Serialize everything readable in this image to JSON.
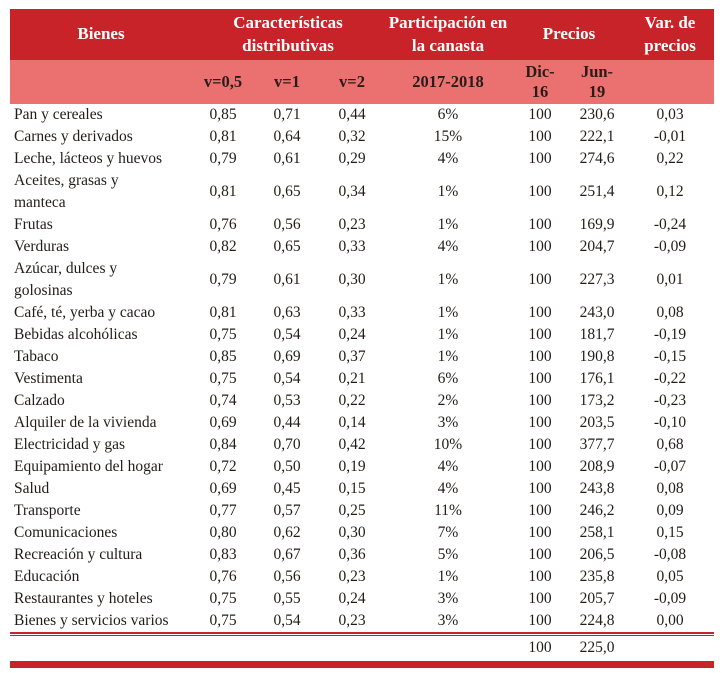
{
  "colors": {
    "header_bg": "#c9232a",
    "subheader_bg": "#ea716f",
    "rule_red": "#c9232a",
    "header_text": "#ffffff",
    "body_text": "#221c19"
  },
  "table": {
    "header": {
      "bienes": "Bienes",
      "caracteristicas": "Características distributivas",
      "participacion": "Participación en la canasta",
      "precios": "Precios",
      "var_precios": "Var. de precios"
    },
    "subheader": {
      "v05": "v=0,5",
      "v1": "v=1",
      "v2": "v=2",
      "period": "2017-2018",
      "dic16": "Dic-\n16",
      "jun19": "Jun-\n19"
    },
    "rows": [
      {
        "name": "Pan y cereales",
        "v05": "0,85",
        "v1": "0,71",
        "v2": "0,44",
        "share": "6%",
        "dic16": "100",
        "jun19": "230,6",
        "var": "0,03"
      },
      {
        "name": "Carnes y derivados",
        "v05": "0,81",
        "v1": "0,64",
        "v2": "0,32",
        "share": "15%",
        "dic16": "100",
        "jun19": "222,1",
        "var": "-0,01"
      },
      {
        "name": "Leche, lácteos y huevos",
        "v05": "0,79",
        "v1": "0,61",
        "v2": "0,29",
        "share": "4%",
        "dic16": "100",
        "jun19": "274,6",
        "var": "0,22"
      },
      {
        "name": "Aceites, grasas y\nmanteca",
        "v05": "0,81",
        "v1": "0,65",
        "v2": "0,34",
        "share": "1%",
        "dic16": "100",
        "jun19": "251,4",
        "var": "0,12"
      },
      {
        "name": "Frutas",
        "v05": "0,76",
        "v1": "0,56",
        "v2": "0,23",
        "share": "1%",
        "dic16": "100",
        "jun19": "169,9",
        "var": "-0,24"
      },
      {
        "name": "Verduras",
        "v05": "0,82",
        "v1": "0,65",
        "v2": "0,33",
        "share": "4%",
        "dic16": "100",
        "jun19": "204,7",
        "var": "-0,09"
      },
      {
        "name": "Azúcar, dulces y\ngolosinas",
        "v05": "0,79",
        "v1": "0,61",
        "v2": "0,30",
        "share": "1%",
        "dic16": "100",
        "jun19": "227,3",
        "var": "0,01"
      },
      {
        "name": "Café, té, yerba y cacao",
        "v05": "0,81",
        "v1": "0,63",
        "v2": "0,33",
        "share": "1%",
        "dic16": "100",
        "jun19": "243,0",
        "var": "0,08"
      },
      {
        "name": "Bebidas alcohólicas",
        "v05": "0,75",
        "v1": "0,54",
        "v2": "0,24",
        "share": "1%",
        "dic16": "100",
        "jun19": "181,7",
        "var": "-0,19"
      },
      {
        "name": "Tabaco",
        "v05": "0,85",
        "v1": "0,69",
        "v2": "0,37",
        "share": "1%",
        "dic16": "100",
        "jun19": "190,8",
        "var": "-0,15"
      },
      {
        "name": "Vestimenta",
        "v05": "0,75",
        "v1": "0,54",
        "v2": "0,21",
        "share": "6%",
        "dic16": "100",
        "jun19": "176,1",
        "var": "-0,22"
      },
      {
        "name": "Calzado",
        "v05": "0,74",
        "v1": "0,53",
        "v2": "0,22",
        "share": "2%",
        "dic16": "100",
        "jun19": "173,2",
        "var": "-0,23"
      },
      {
        "name": "Alquiler de la vivienda",
        "v05": "0,69",
        "v1": "0,44",
        "v2": "0,14",
        "share": "3%",
        "dic16": "100",
        "jun19": "203,5",
        "var": "-0,10"
      },
      {
        "name": "Electricidad y gas",
        "v05": "0,84",
        "v1": "0,70",
        "v2": "0,42",
        "share": "10%",
        "dic16": "100",
        "jun19": "377,7",
        "var": "0,68"
      },
      {
        "name": "Equipamiento del hogar",
        "v05": "0,72",
        "v1": "0,50",
        "v2": "0,19",
        "share": "4%",
        "dic16": "100",
        "jun19": "208,9",
        "var": "-0,07"
      },
      {
        "name": "Salud",
        "v05": "0,69",
        "v1": "0,45",
        "v2": "0,15",
        "share": "4%",
        "dic16": "100",
        "jun19": "243,8",
        "var": "0,08"
      },
      {
        "name": "Transporte",
        "v05": "0,77",
        "v1": "0,57",
        "v2": "0,25",
        "share": "11%",
        "dic16": "100",
        "jun19": "246,2",
        "var": "0,09"
      },
      {
        "name": "Comunicaciones",
        "v05": "0,80",
        "v1": "0,62",
        "v2": "0,30",
        "share": "7%",
        "dic16": "100",
        "jun19": "258,1",
        "var": "0,15"
      },
      {
        "name": "Recreación y cultura",
        "v05": "0,83",
        "v1": "0,67",
        "v2": "0,36",
        "share": "5%",
        "dic16": "100",
        "jun19": "206,5",
        "var": "-0,08"
      },
      {
        "name": "Educación",
        "v05": "0,76",
        "v1": "0,56",
        "v2": "0,23",
        "share": "1%",
        "dic16": "100",
        "jun19": "235,8",
        "var": "0,05"
      },
      {
        "name": "Restaurantes y hoteles",
        "v05": "0,75",
        "v1": "0,55",
        "v2": "0,24",
        "share": "3%",
        "dic16": "100",
        "jun19": "205,7",
        "var": "-0,09"
      },
      {
        "name": "Bienes y servicios varios",
        "v05": "0,75",
        "v1": "0,54",
        "v2": "0,23",
        "share": "3%",
        "dic16": "100",
        "jun19": "224,8",
        "var": "0,00"
      }
    ],
    "footer": {
      "dic16": "100",
      "jun19": "225,0"
    }
  }
}
